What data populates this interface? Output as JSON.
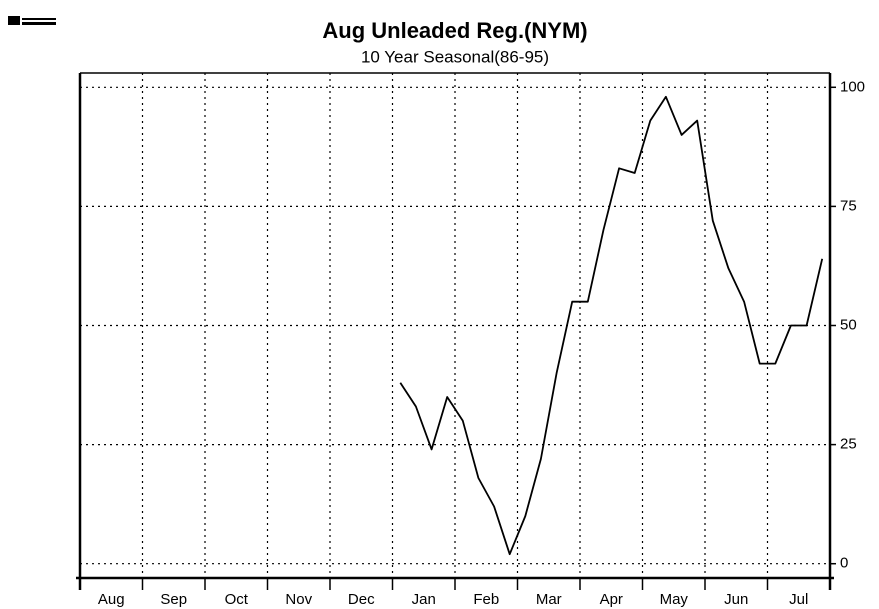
{
  "chart_data": {
    "type": "line",
    "title": "Aug Unleaded Reg.(NYM)",
    "subtitle": "10 Year Seasonal(86-95)",
    "categories": [
      "Aug",
      null,
      null,
      null,
      "Sep",
      null,
      null,
      null,
      "Oct",
      null,
      null,
      null,
      "Nov",
      null,
      null,
      null,
      "Dec",
      null,
      null,
      null,
      "Jan",
      null,
      null,
      null,
      "Feb",
      null,
      null,
      null,
      "Mar",
      null,
      null,
      null,
      "Apr",
      null,
      null,
      null,
      "May",
      null,
      null,
      null,
      "Jun",
      null,
      null,
      null,
      "Jul",
      null,
      null,
      null
    ],
    "series": [
      {
        "color": "#000000",
        "values": [
          null,
          null,
          null,
          null,
          null,
          null,
          null,
          null,
          null,
          null,
          null,
          null,
          null,
          null,
          null,
          null,
          null,
          null,
          null,
          null,
          38,
          33,
          24,
          35,
          30,
          18,
          12,
          2,
          10,
          22,
          40,
          55,
          55,
          70,
          83,
          82,
          93,
          98,
          90,
          93,
          72,
          62,
          55,
          42,
          42,
          50,
          50,
          64
        ]
      }
    ],
    "ylim": [
      -3,
      103
    ],
    "yticks": [
      0,
      25,
      50,
      75,
      100
    ],
    "grid": true,
    "y_axis_side": "right"
  }
}
